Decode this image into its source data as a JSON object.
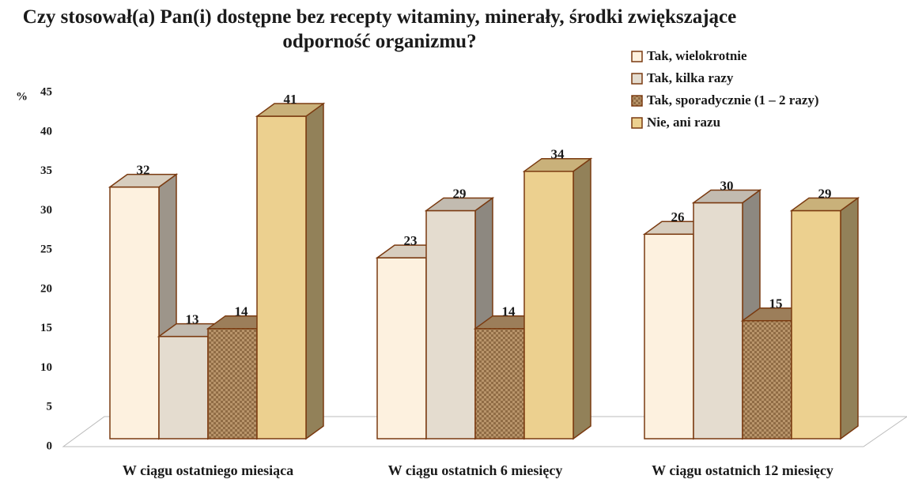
{
  "chart_data": {
    "type": "bar3d",
    "title": "Czy stosował(a) Pan(i) dostępne bez recepty witaminy, minerały, środki zwiększające odporność organizmu?",
    "y_label": "%",
    "categories": [
      "W ciągu ostatniego miesiąca",
      "W ciągu ostatnich 6 miesięcy",
      "W ciągu ostatnich 12 miesięcy"
    ],
    "series": [
      {
        "name": "Tak, wielokrotnie",
        "color": "#fdf1df",
        "values": [
          32,
          23,
          26
        ]
      },
      {
        "name": "Tak, kilka razy",
        "color": "#e4dccf",
        "values": [
          13,
          29,
          30
        ]
      },
      {
        "name": "Tak, sporadycznie (1 – 2 razy)",
        "color": "#b8946a",
        "pattern": "checker",
        "values": [
          14,
          14,
          15
        ]
      },
      {
        "name": "Nie, ani razu",
        "color": "#ecd08f",
        "values": [
          41,
          34,
          29
        ]
      }
    ],
    "ylim": [
      0,
      45
    ],
    "yticks": [
      0,
      5,
      10,
      15,
      20,
      25,
      30,
      35,
      40,
      45
    ],
    "legend": "top-right"
  }
}
